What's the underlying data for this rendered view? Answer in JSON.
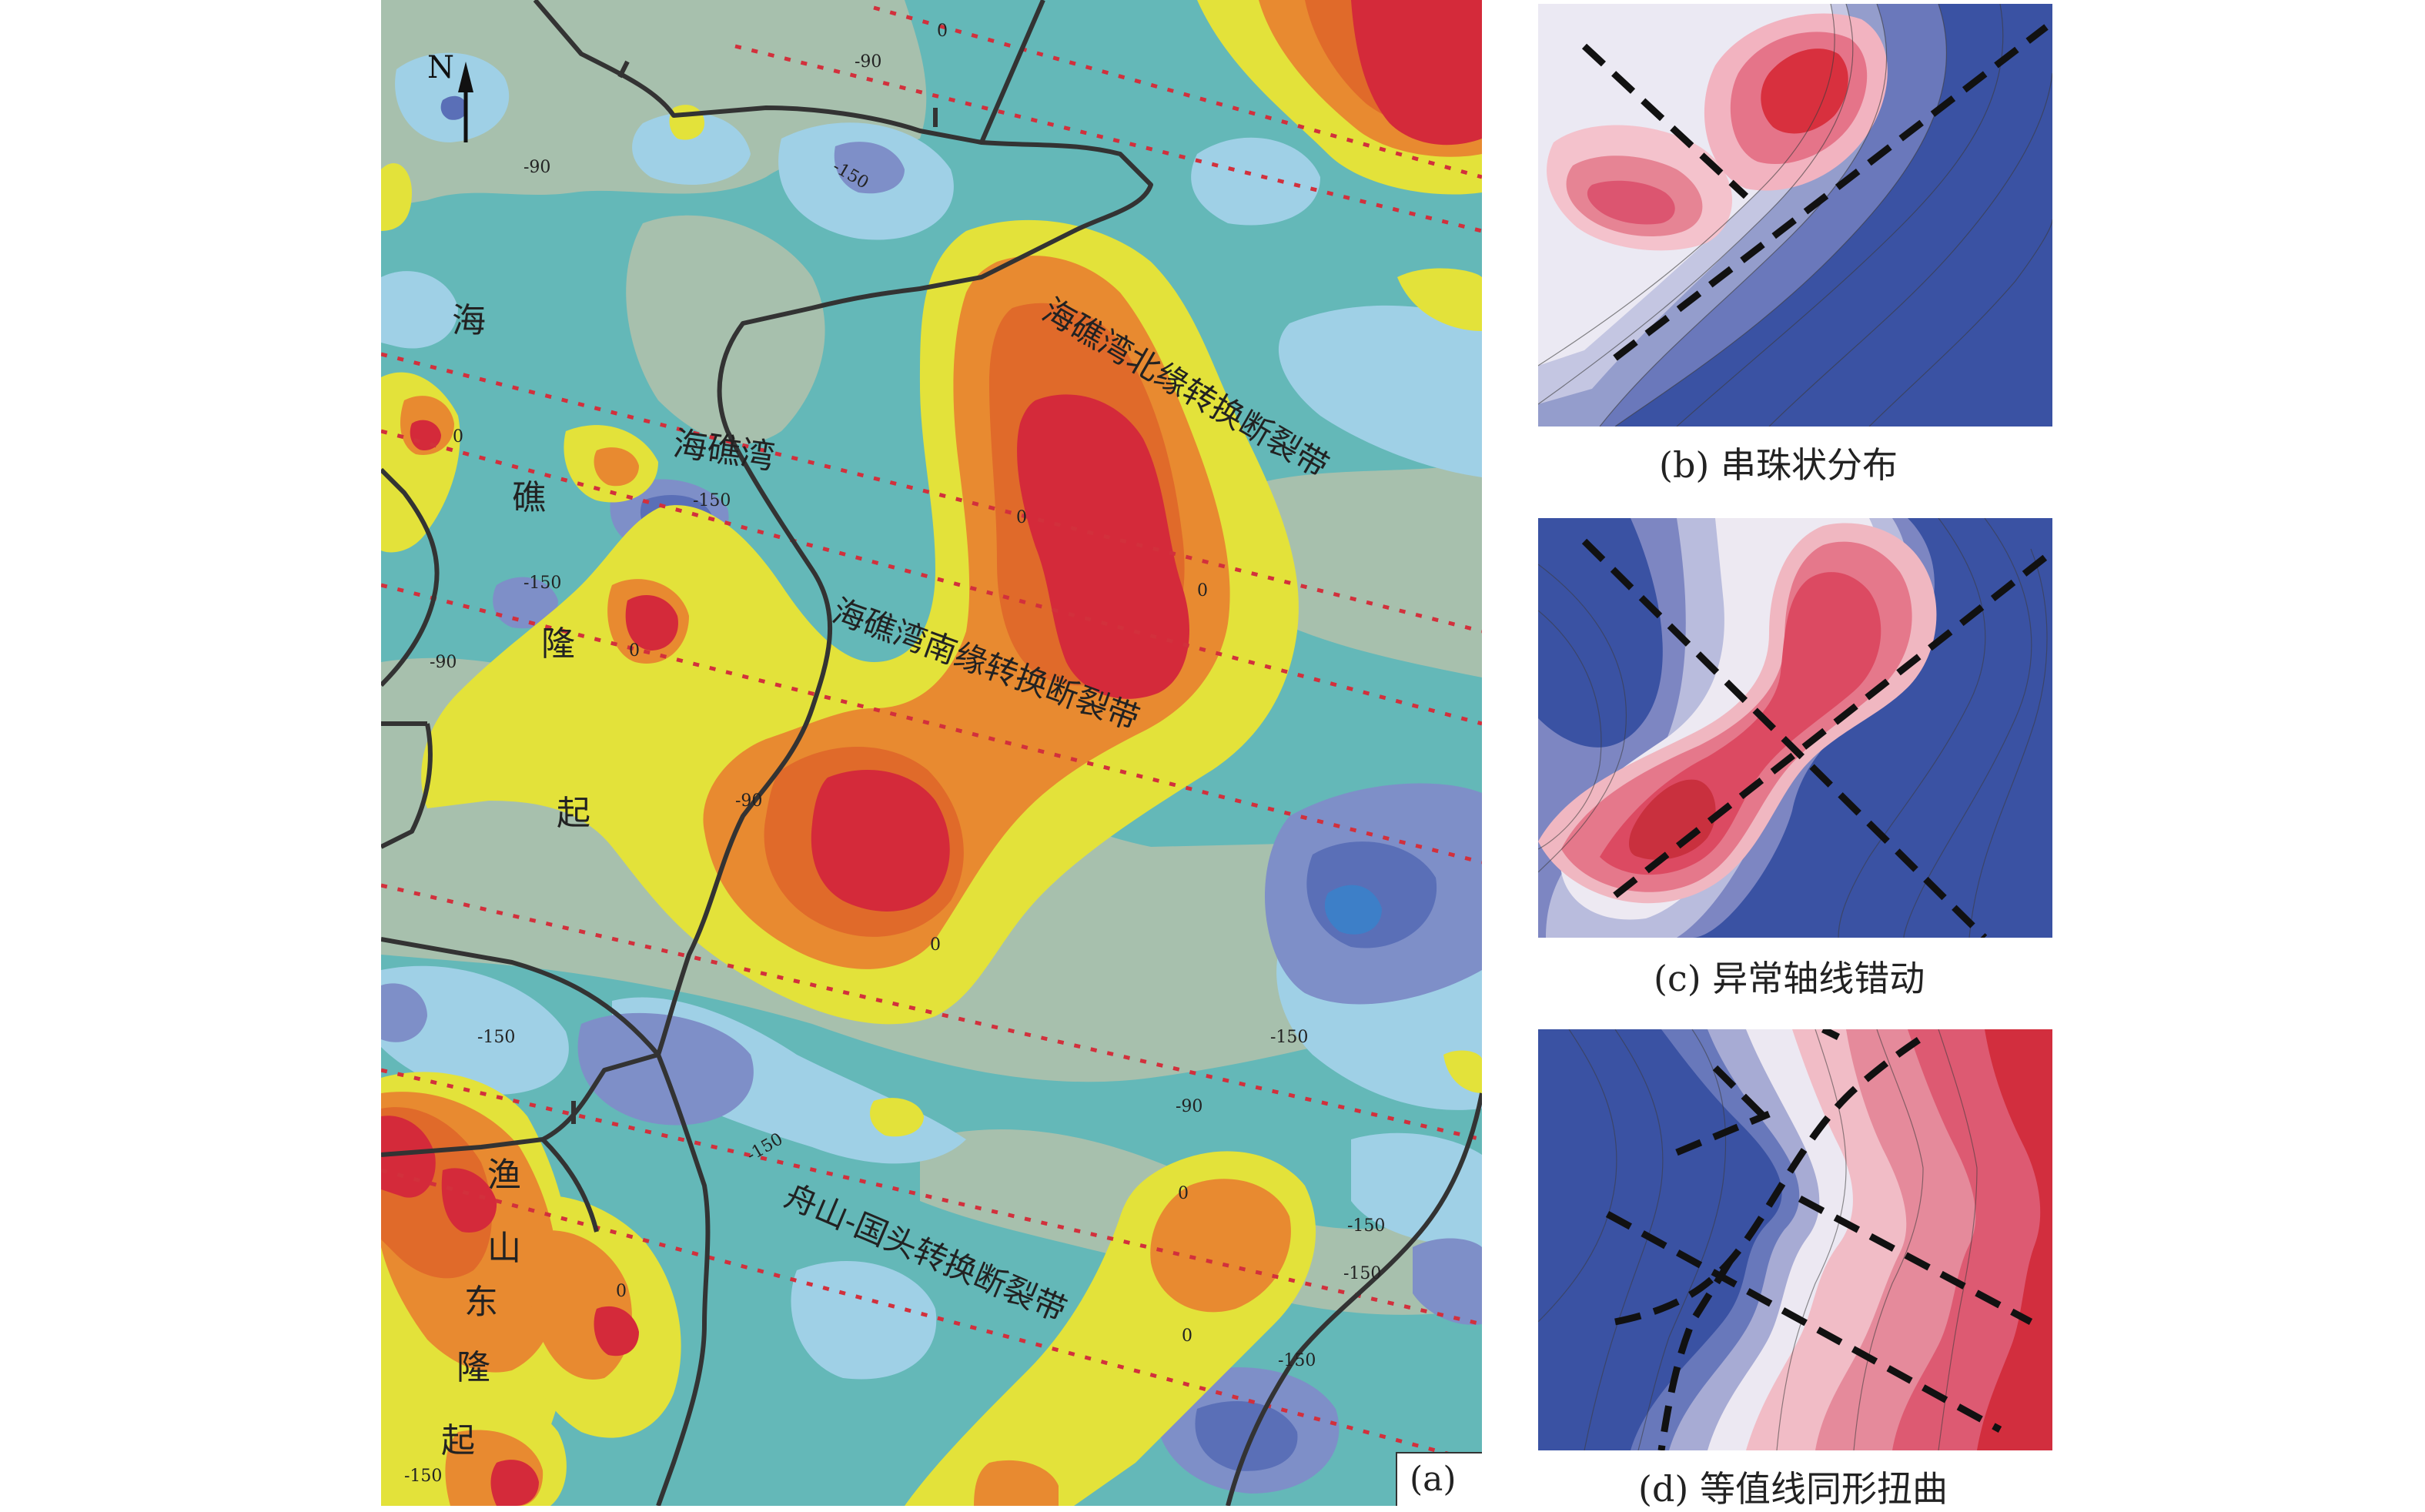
{
  "panel_a": {
    "tag": "(a)",
    "north_label": "N",
    "region_labels": {
      "haijiao_long_1": "海",
      "haijiao_long_2": "礁",
      "haijiao_long_3": "隆",
      "haijiao_long_4": "起",
      "haijiao_wan": "海礁湾",
      "yushan_1": "渔",
      "yushan_2": "山",
      "yushan_3": "东",
      "yushan_4": "隆",
      "yushan_5": "起"
    },
    "fault_labels": {
      "north": "海礁湾北缘转换断裂带",
      "south": "海礁湾南缘转换断裂带",
      "zhoushan": "舟山-国头转换断裂带"
    },
    "contour_labels": {
      "c01": "0",
      "c02": "-90",
      "c03": "-150",
      "c04": "-90",
      "c05": "0",
      "c06": "-150",
      "c07": "-150",
      "c08": "0",
      "c09": "-90",
      "c10": "0",
      "c11": "0",
      "c12": "-90",
      "c13": "0",
      "c14": "-150",
      "c15": "-150",
      "c16": "-150",
      "c17": "-90",
      "c18": "0",
      "c19": "0",
      "c20": "-150",
      "c21": "-150",
      "c22": "0",
      "c23": "-150",
      "c24": "-150"
    },
    "colors": {
      "deep_blue": "#5a6fb7",
      "blue": "#7e8fc8",
      "light_blue": "#9fd0e6",
      "teal": "#64b8b8",
      "sage": "#a7c0ad",
      "yellow": "#e3e23a",
      "orange": "#e88a30",
      "dark_orange": "#e06a2a",
      "red": "#d42a3a",
      "fault_dash": "#d2303c",
      "boundary": "#333333"
    }
  },
  "panel_b": {
    "caption": "(b) 串珠状分布"
  },
  "panel_c": {
    "caption": "(c) 异常轴线错动"
  },
  "panel_d": {
    "caption": "(d) 等值线同形扭曲"
  }
}
